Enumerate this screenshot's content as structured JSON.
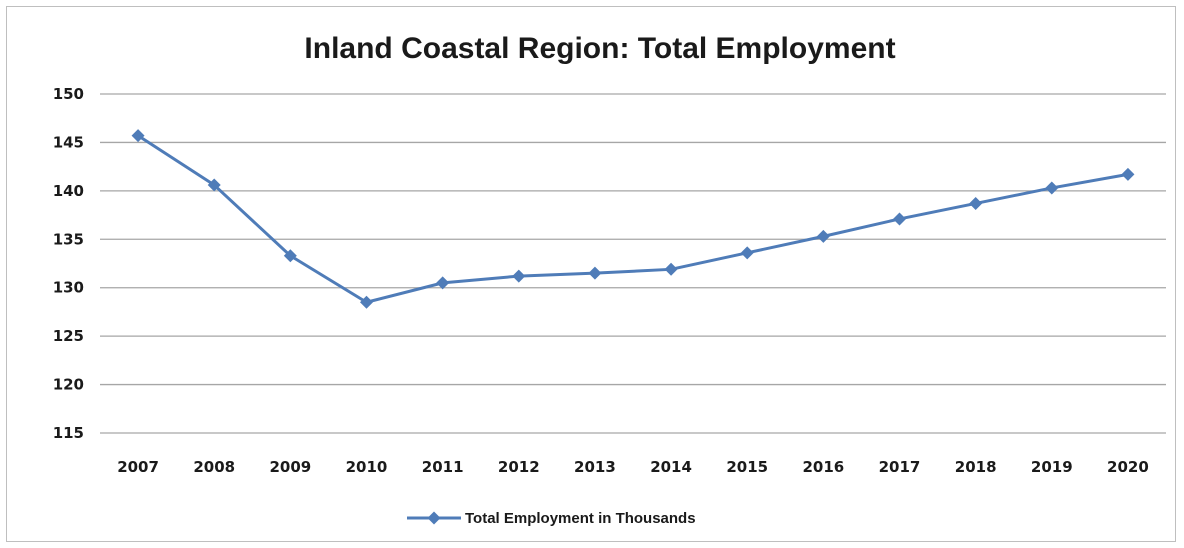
{
  "chart_data": {
    "type": "line",
    "title": "Inland Coastal Region: Total Employment",
    "xlabel": "",
    "ylabel": "",
    "categories": [
      "2007",
      "2008",
      "2009",
      "2010",
      "2011",
      "2012",
      "2013",
      "2014",
      "2015",
      "2016",
      "2017",
      "2018",
      "2019",
      "2020"
    ],
    "series": [
      {
        "name": "Total Employment in Thousands",
        "color": "#4f7cb8",
        "values": [
          145.7,
          140.6,
          133.3,
          128.5,
          130.5,
          131.2,
          131.5,
          131.9,
          133.6,
          135.3,
          137.1,
          138.7,
          140.3,
          141.7
        ]
      }
    ],
    "ylim": [
      115,
      150
    ],
    "yticks": [
      "115",
      "120",
      "125",
      "130",
      "135",
      "140",
      "145",
      "150"
    ],
    "grid": true,
    "legend_position": "bottom",
    "gridline_color": "#a6a6a6"
  }
}
